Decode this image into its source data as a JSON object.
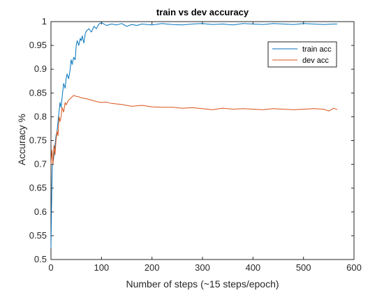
{
  "chart_data": {
    "type": "line",
    "title": "train vs dev accuracy",
    "xlabel": "Number of steps (~15 steps/epoch)",
    "ylabel": "Accuracy %",
    "xlim": [
      0,
      600
    ],
    "ylim": [
      0.5,
      1.0
    ],
    "xticks": [
      "0",
      "100",
      "200",
      "300",
      "400",
      "500",
      "600"
    ],
    "yticks": [
      "0.5",
      "0.55",
      "0.6",
      "0.65",
      "0.7",
      "0.75",
      "0.8",
      "0.85",
      "0.9",
      "0.95",
      "1"
    ],
    "grid": false,
    "legend_position": "top-right",
    "series": [
      {
        "name": "train acc",
        "color": "#0072BD",
        "x": [
          0,
          1,
          2,
          3,
          5,
          8,
          10,
          12,
          15,
          18,
          20,
          22,
          25,
          28,
          30,
          32,
          35,
          38,
          40,
          42,
          45,
          48,
          50,
          52,
          55,
          58,
          60,
          62,
          65,
          68,
          70,
          75,
          80,
          85,
          90,
          95,
          100,
          110,
          120,
          130,
          140,
          150,
          160,
          170,
          180,
          200,
          220,
          240,
          260,
          280,
          300,
          320,
          340,
          360,
          380,
          400,
          420,
          440,
          460,
          480,
          500,
          520,
          540,
          560,
          567
        ],
        "y": [
          0.525,
          0.6,
          0.66,
          0.7,
          0.71,
          0.74,
          0.76,
          0.77,
          0.8,
          0.83,
          0.82,
          0.84,
          0.87,
          0.86,
          0.88,
          0.89,
          0.88,
          0.9,
          0.92,
          0.91,
          0.925,
          0.92,
          0.95,
          0.96,
          0.95,
          0.965,
          0.96,
          0.97,
          0.955,
          0.975,
          0.98,
          0.985,
          0.978,
          0.99,
          0.985,
          0.995,
          0.998,
          0.992,
          0.995,
          0.993,
          0.996,
          0.99,
          0.994,
          0.992,
          0.995,
          0.993,
          0.996,
          0.994,
          0.993,
          0.995,
          0.996,
          0.994,
          0.995,
          0.993,
          0.996,
          0.995,
          0.994,
          0.996,
          0.995,
          0.994,
          0.996,
          0.995,
          0.994,
          0.995,
          0.995
        ]
      },
      {
        "name": "dev acc",
        "color": "#D95319",
        "x": [
          0,
          2,
          4,
          6,
          8,
          10,
          12,
          14,
          16,
          18,
          20,
          22,
          25,
          28,
          30,
          35,
          40,
          45,
          50,
          55,
          60,
          70,
          80,
          90,
          100,
          110,
          120,
          140,
          160,
          180,
          200,
          220,
          240,
          260,
          280,
          300,
          320,
          340,
          360,
          380,
          400,
          420,
          440,
          460,
          480,
          500,
          520,
          540,
          550,
          560,
          567
        ],
        "y": [
          0.7,
          0.73,
          0.7,
          0.74,
          0.72,
          0.75,
          0.77,
          0.76,
          0.8,
          0.79,
          0.8,
          0.82,
          0.81,
          0.83,
          0.825,
          0.835,
          0.84,
          0.845,
          0.843,
          0.842,
          0.84,
          0.838,
          0.835,
          0.832,
          0.83,
          0.831,
          0.828,
          0.826,
          0.822,
          0.824,
          0.821,
          0.82,
          0.82,
          0.818,
          0.819,
          0.817,
          0.815,
          0.818,
          0.816,
          0.817,
          0.816,
          0.815,
          0.817,
          0.816,
          0.815,
          0.816,
          0.817,
          0.816,
          0.812,
          0.818,
          0.815
        ]
      }
    ]
  }
}
